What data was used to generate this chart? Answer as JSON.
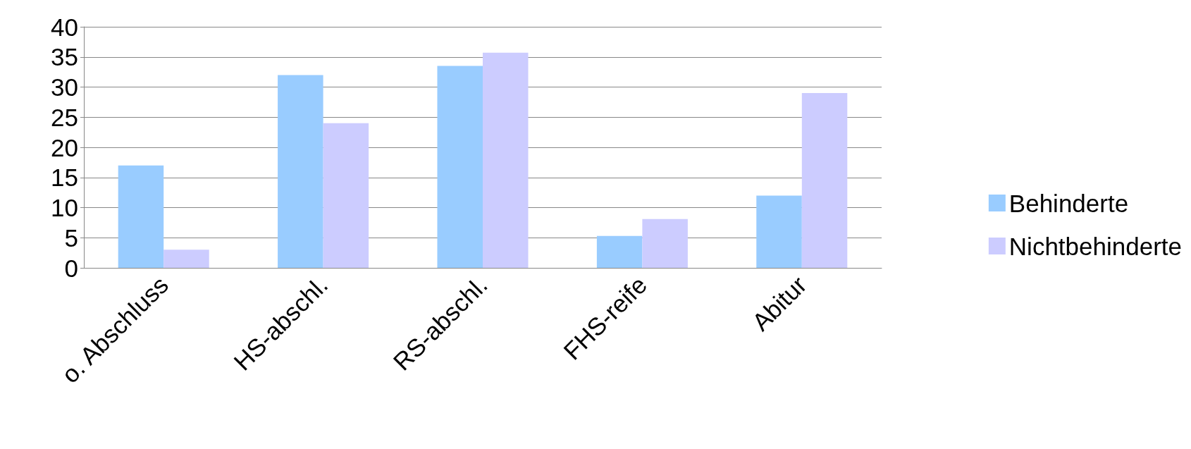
{
  "chart_data": {
    "type": "bar",
    "categories": [
      "o. Abschluss",
      "HS-abschl.",
      "RS-abschl.",
      "FHS-reife",
      "Abitur"
    ],
    "series": [
      {
        "name": "Behinderte",
        "color": "#99ccff",
        "values": [
          17,
          32,
          33.5,
          5.3,
          12
        ]
      },
      {
        "name": "Nichtbehinderte",
        "color": "#ccccff",
        "values": [
          3,
          24,
          35.7,
          8.1,
          29
        ]
      }
    ],
    "ylim": [
      0,
      40
    ],
    "yticks": [
      0,
      5,
      10,
      15,
      20,
      25,
      30,
      35,
      40
    ],
    "grid": "y",
    "legend": "right"
  }
}
